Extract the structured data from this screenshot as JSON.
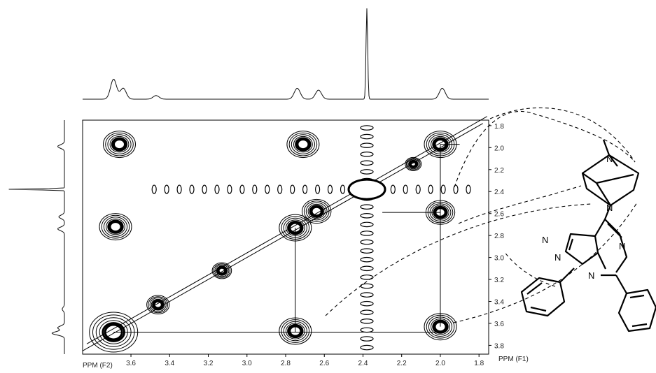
{
  "axes": {
    "f2_title": "PPM (F2)",
    "f1_title": "PPM (F1)",
    "f2_range": [
      3.85,
      1.75
    ],
    "f1_range": [
      1.75,
      3.88
    ],
    "f2_ticks": [
      "3.6",
      "3.4",
      "3.2",
      "3.0",
      "2.8",
      "2.6",
      "2.4",
      "2.2",
      "2.0",
      "1.8"
    ],
    "f1_ticks": [
      "1.8",
      "2.0",
      "2.2",
      "2.4",
      "2.6",
      "2.8",
      "3.0",
      "3.2",
      "3.4",
      "3.6",
      "3.8"
    ]
  },
  "projection_peaks": [
    {
      "ppm": 3.69,
      "height": 0.22
    },
    {
      "ppm": 3.64,
      "height": 0.12
    },
    {
      "ppm": 3.47,
      "height": 0.04
    },
    {
      "ppm": 2.74,
      "height": 0.12
    },
    {
      "ppm": 2.63,
      "height": 0.1
    },
    {
      "ppm": 2.38,
      "height": 1.0
    },
    {
      "ppm": 1.99,
      "height": 0.12
    }
  ],
  "cross_peaks": [
    {
      "f2": 3.66,
      "f1": 1.97,
      "size": 1.0
    },
    {
      "f2": 2.71,
      "f1": 1.97,
      "size": 1.0
    },
    {
      "f2": 2.0,
      "f1": 1.97,
      "size": 1.0
    },
    {
      "f2": 3.68,
      "f1": 2.72,
      "size": 1.0
    },
    {
      "f2": 2.75,
      "f1": 2.73,
      "size": 1.0
    },
    {
      "f2": 2.64,
      "f1": 2.58,
      "size": 0.9
    },
    {
      "f2": 2.0,
      "f1": 2.59,
      "size": 0.9
    },
    {
      "f2": 2.14,
      "f1": 2.15,
      "size": 0.5
    },
    {
      "f2": 3.13,
      "f1": 3.12,
      "size": 0.6
    },
    {
      "f2": 3.46,
      "f1": 3.43,
      "size": 0.7
    },
    {
      "f2": 2.75,
      "f1": 3.67,
      "size": 1.0
    },
    {
      "f2": 2.0,
      "f1": 3.63,
      "size": 1.0
    },
    {
      "f2": 3.69,
      "f1": 3.68,
      "size": 1.5
    }
  ],
  "structure": {
    "atom_labels": [
      "N",
      "N",
      "N",
      "N",
      "N",
      "N"
    ]
  }
}
